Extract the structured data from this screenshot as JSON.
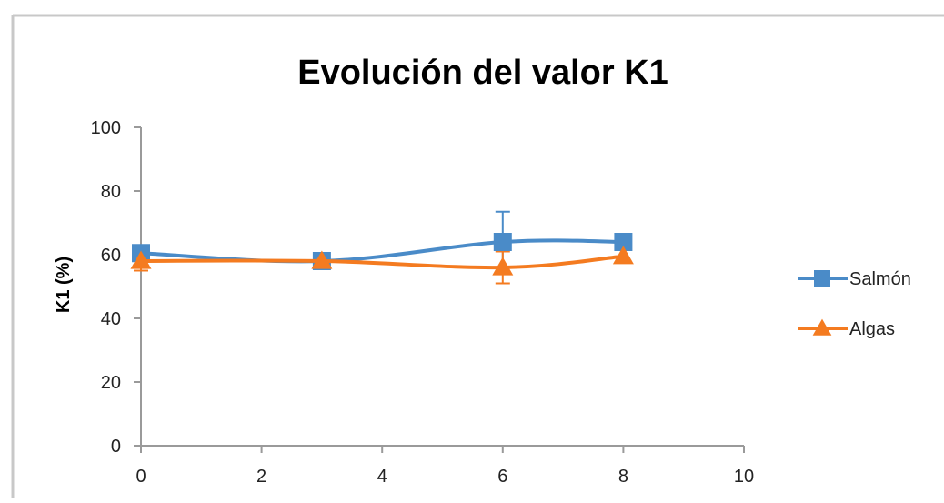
{
  "chart_data": {
    "type": "line",
    "title": "Evolución del valor K1",
    "xlabel": "",
    "ylabel": "K1 (%)",
    "xlim": [
      0,
      10
    ],
    "ylim": [
      0,
      100
    ],
    "x_ticks": [
      0,
      2,
      4,
      6,
      8,
      10
    ],
    "y_ticks": [
      0,
      20,
      40,
      60,
      80,
      100
    ],
    "legend_position": "right",
    "grid": false,
    "series": [
      {
        "name": "Salmón",
        "color": "#4a8bc8",
        "marker": "square",
        "x": [
          0,
          3,
          6,
          8
        ],
        "y": [
          60.5,
          58,
          64,
          64
        ],
        "error": [
          0,
          2,
          9.5,
          0
        ]
      },
      {
        "name": "Algas",
        "color": "#f47b20",
        "marker": "triangle",
        "x": [
          0,
          3,
          6,
          8
        ],
        "y": [
          58,
          58,
          56,
          59.5
        ],
        "error": [
          3,
          2,
          5,
          0
        ]
      }
    ]
  }
}
